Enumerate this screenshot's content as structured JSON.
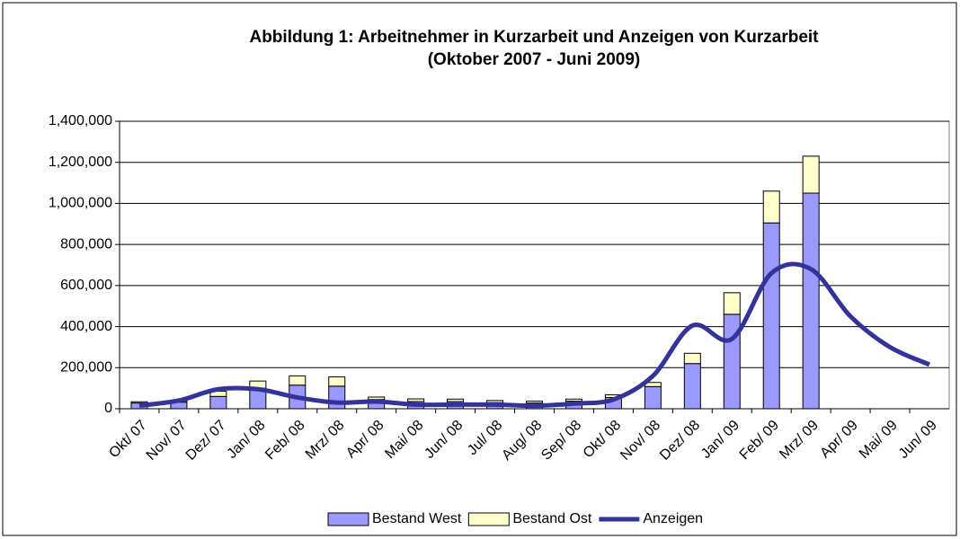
{
  "chart_data": {
    "type": "bar",
    "title": "Abbildung 1: Arbeitnehmer in Kurzarbeit und Anzeigen von Kurzarbeit",
    "subtitle": "(Oktober 2007 - Juni 2009)",
    "stacked": true,
    "categories": [
      "Okt/ 07",
      "Nov/ 07",
      "Dez/ 07",
      "Jan/ 08",
      "Feb/ 08",
      "Mrz/ 08",
      "Apr/ 08",
      "Mai/ 08",
      "Jun/ 08",
      "Jul/ 08",
      "Aug/ 08",
      "Sep/ 08",
      "Okt/ 08",
      "Nov/ 08",
      "Dez/ 08",
      "Jan/ 09",
      "Feb/ 09",
      "Mrz/ 09",
      "Apr/ 09",
      "Mai/ 09",
      "Jun/ 09"
    ],
    "series": [
      {
        "name": "Bestand West",
        "type": "bar",
        "color": "#9999ff",
        "values": [
          28000,
          32000,
          60000,
          100000,
          115000,
          110000,
          45000,
          35000,
          35000,
          30000,
          28000,
          37000,
          55000,
          108000,
          220000,
          460000,
          905000,
          1050000,
          null,
          null,
          null
        ]
      },
      {
        "name": "Bestand Ost",
        "type": "bar",
        "color": "#ffffcc",
        "values": [
          6000,
          6000,
          25000,
          35000,
          45000,
          45000,
          12000,
          13000,
          12000,
          10000,
          9000,
          10000,
          13000,
          20000,
          50000,
          105000,
          155000,
          180000,
          null,
          null,
          null
        ]
      },
      {
        "name": "Anzeigen",
        "type": "line",
        "color": "#333399",
        "values": [
          15000,
          40000,
          95000,
          95000,
          55000,
          30000,
          35000,
          20000,
          20000,
          20000,
          15000,
          25000,
          45000,
          160000,
          405000,
          340000,
          660000,
          680000,
          450000,
          300000,
          215000
        ]
      }
    ],
    "ylim": [
      0,
      1400000
    ],
    "yticks": [
      0,
      {
        "value": 200000,
        "label": "200,000"
      },
      {
        "value": 400000,
        "label": "400,000"
      },
      {
        "value": 600000,
        "label": "600,000"
      },
      {
        "value": 800000,
        "label": "800,000"
      },
      {
        "value": 1000000,
        "label": "1,000,000"
      },
      {
        "value": 1200000,
        "label": "1,200,000"
      },
      {
        "value": 1400000,
        "label": "1,400,000"
      }
    ],
    "grid": true,
    "legend": "bottom"
  }
}
